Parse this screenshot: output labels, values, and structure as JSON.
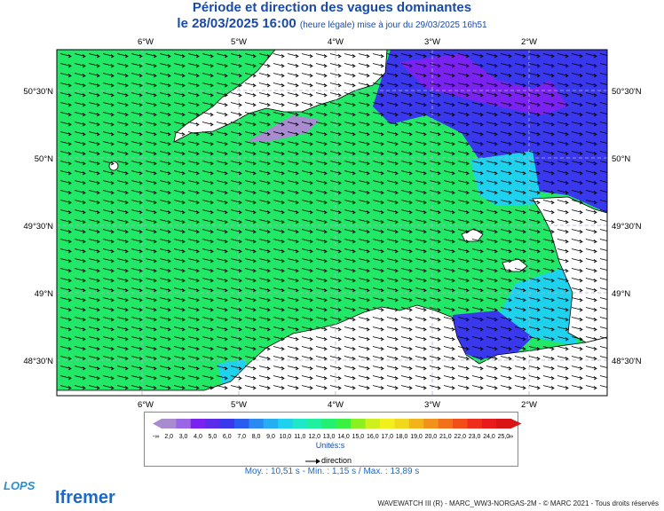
{
  "title": "Période et direction des vagues dominantes",
  "subtitle_date": "le 28/03/2025 16:00",
  "subtitle_note": "(heure légale) mise à jour du 29/03/2025 16h51",
  "lon_labels": [
    "6°W",
    "5°W",
    "4°W",
    "3°W",
    "2°W"
  ],
  "lat_labels": [
    "50°30'N",
    "50°N",
    "49°30'N",
    "49°N",
    "48°30'N"
  ],
  "legend": {
    "low": "-∞",
    "high": "∞",
    "values": [
      "2,0",
      "3,0",
      "4,0",
      "5,0",
      "6,0",
      "7,0",
      "8,0",
      "9,0",
      "10,0",
      "11,0",
      "12,0",
      "13,0",
      "14,0",
      "15,0",
      "16,0",
      "17,0",
      "18,0",
      "19,0",
      "20,0",
      "21,0",
      "22,0",
      "23,0",
      "24,0",
      "25,0"
    ],
    "colors": [
      "#a98bd0",
      "#9a66e6",
      "#7a22f0",
      "#5a2ee8",
      "#3a38ec",
      "#2a5cf0",
      "#2a8af2",
      "#26aef2",
      "#1ed2ee",
      "#1ee8c8",
      "#1ef0a0",
      "#22f070",
      "#3af040",
      "#8af020",
      "#cef01c",
      "#f2f01c",
      "#f2d81c",
      "#f2b41a",
      "#f2921a",
      "#f2701a",
      "#f24e1a",
      "#ee2e1a",
      "#e81a1a",
      "#d81414"
    ],
    "unit": "Unités:s",
    "direction_label": "direction"
  },
  "stats": "Moy. : 10,51 s   -   Min. : 1,15 s / Max. : 13,89 s",
  "footer": "WAVEWATCH III (R) - MARC_WW3-NORGAS-2M - © MARC 2021 - Tous droits réservés",
  "logos": {
    "lops": "LOPS",
    "ifremer": "Ifremer"
  },
  "colors": {
    "sea": "#22e868",
    "land": "#ffffff",
    "grid": "#b0b0d0",
    "title": "#1a4aa8"
  }
}
